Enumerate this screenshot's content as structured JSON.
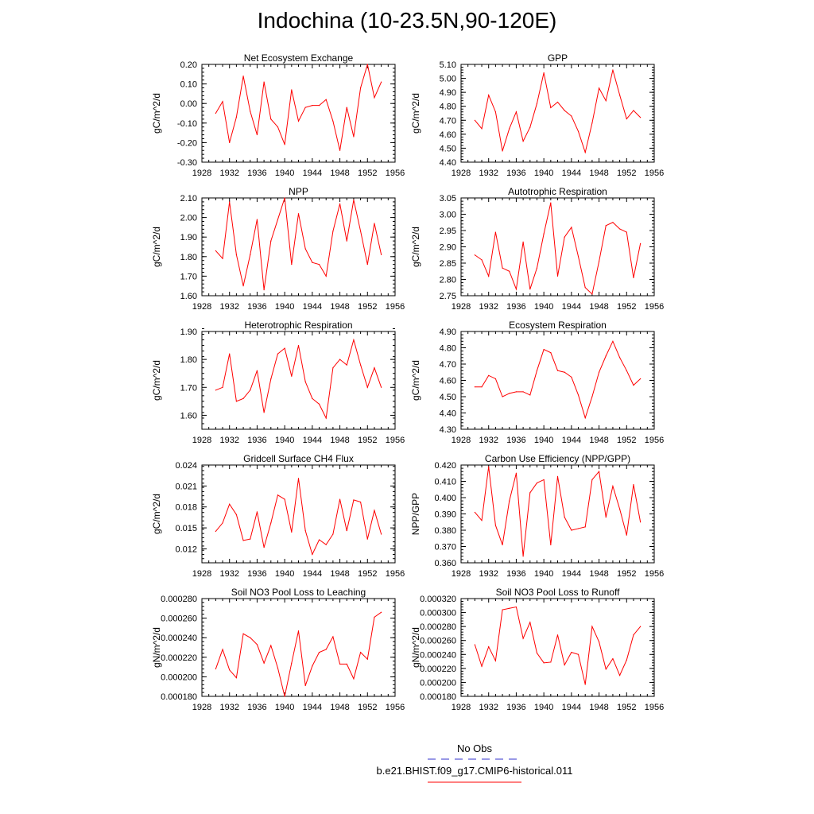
{
  "page": {
    "title": "Indochina (10-23.5N,90-120E)",
    "colors": {
      "series": "#ff0000",
      "obs": "#3333cc",
      "axis": "#000000"
    }
  },
  "legend": {
    "obs_label": "No Obs",
    "model_label": "b.e21.BHIST.f09_g17.CMIP6-historical.011"
  },
  "chart_data": [
    {
      "type": "line",
      "title": "Net Ecosystem Exchange",
      "ylabel": "gC/m^2/d",
      "xlabel": "",
      "xlim": [
        1928,
        1956
      ],
      "xticks": [
        1928,
        1932,
        1936,
        1940,
        1944,
        1948,
        1952,
        1956
      ],
      "ylim": [
        -0.3,
        0.2
      ],
      "yticks": [
        "-0.30",
        "-0.20",
        "-0.10",
        "0.00",
        "0.10",
        "0.20"
      ],
      "ytick_values": [
        -0.3,
        -0.2,
        -0.1,
        0.0,
        0.1,
        0.2
      ],
      "x": [
        1930,
        1931,
        1932,
        1933,
        1934,
        1935,
        1936,
        1937,
        1938,
        1939,
        1940,
        1941,
        1942,
        1943,
        1944,
        1945,
        1946,
        1947,
        1948,
        1949,
        1950,
        1951,
        1952,
        1953,
        1954
      ],
      "series": [
        {
          "values": [
            -0.05,
            0.01,
            -0.2,
            -0.07,
            0.14,
            -0.04,
            -0.16,
            0.11,
            -0.08,
            -0.12,
            -0.21,
            0.07,
            -0.09,
            -0.02,
            -0.01,
            -0.01,
            0.02,
            -0.09,
            -0.24,
            -0.02,
            -0.17,
            0.08,
            0.2,
            0.03,
            0.11
          ]
        }
      ]
    },
    {
      "type": "line",
      "title": "GPP",
      "ylabel": "gC/m^2/d",
      "xlabel": "",
      "xlim": [
        1928,
        1956
      ],
      "xticks": [
        1928,
        1932,
        1936,
        1940,
        1944,
        1948,
        1952,
        1956
      ],
      "ylim": [
        4.4,
        5.1
      ],
      "yticks": [
        "4.40",
        "4.50",
        "4.60",
        "4.70",
        "4.80",
        "4.90",
        "5.00",
        "5.10"
      ],
      "ytick_values": [
        4.4,
        4.5,
        4.6,
        4.7,
        4.8,
        4.9,
        5.0,
        5.1
      ],
      "x": [
        1930,
        1931,
        1932,
        1933,
        1934,
        1935,
        1936,
        1937,
        1938,
        1939,
        1940,
        1941,
        1942,
        1943,
        1944,
        1945,
        1946,
        1947,
        1948,
        1949,
        1950,
        1951,
        1952,
        1953,
        1954
      ],
      "series": [
        {
          "values": [
            4.7,
            4.64,
            4.88,
            4.76,
            4.48,
            4.64,
            4.76,
            4.55,
            4.65,
            4.82,
            5.04,
            4.79,
            4.83,
            4.77,
            4.73,
            4.62,
            4.47,
            4.68,
            4.93,
            4.84,
            5.06,
            4.88,
            4.71,
            4.77,
            4.72
          ]
        }
      ]
    },
    {
      "type": "line",
      "title": "NPP",
      "ylabel": "gC/m^2/d",
      "xlabel": "",
      "xlim": [
        1928,
        1956
      ],
      "xticks": [
        1928,
        1932,
        1936,
        1940,
        1944,
        1948,
        1952,
        1956
      ],
      "ylim": [
        1.6,
        2.1
      ],
      "yticks": [
        "1.60",
        "1.70",
        "1.80",
        "1.90",
        "2.00",
        "2.10"
      ],
      "ytick_values": [
        1.6,
        1.7,
        1.8,
        1.9,
        2.0,
        2.1
      ],
      "x": [
        1930,
        1931,
        1932,
        1933,
        1934,
        1935,
        1936,
        1937,
        1938,
        1939,
        1940,
        1941,
        1942,
        1943,
        1944,
        1945,
        1946,
        1947,
        1948,
        1949,
        1950,
        1951,
        1952,
        1953,
        1954
      ],
      "series": [
        {
          "values": [
            1.83,
            1.79,
            2.08,
            1.81,
            1.65,
            1.81,
            1.99,
            1.63,
            1.88,
            1.99,
            2.1,
            1.76,
            2.02,
            1.84,
            1.77,
            1.76,
            1.7,
            1.93,
            2.07,
            1.88,
            2.09,
            1.93,
            1.76,
            1.97,
            1.81
          ]
        }
      ]
    },
    {
      "type": "line",
      "title": "Autotrophic Respiration",
      "ylabel": "gC/m^2/d",
      "xlabel": "",
      "xlim": [
        1928,
        1956
      ],
      "xticks": [
        1928,
        1932,
        1936,
        1940,
        1944,
        1948,
        1952,
        1956
      ],
      "ylim": [
        2.75,
        3.05
      ],
      "yticks": [
        "2.75",
        "2.80",
        "2.85",
        "2.90",
        "2.95",
        "3.00",
        "3.05"
      ],
      "ytick_values": [
        2.75,
        2.8,
        2.85,
        2.9,
        2.95,
        3.0,
        3.05
      ],
      "x": [
        1930,
        1931,
        1932,
        1933,
        1934,
        1935,
        1936,
        1937,
        1938,
        1939,
        1940,
        1941,
        1942,
        1943,
        1944,
        1945,
        1946,
        1947,
        1948,
        1949,
        1950,
        1951,
        1952,
        1953,
        1954
      ],
      "series": [
        {
          "values": [
            2.875,
            2.86,
            2.81,
            2.945,
            2.835,
            2.825,
            2.77,
            2.915,
            2.77,
            2.835,
            2.94,
            3.035,
            2.81,
            2.93,
            2.96,
            2.87,
            2.775,
            2.755,
            2.855,
            2.965,
            2.975,
            2.955,
            2.945,
            2.805,
            2.91
          ]
        }
      ]
    },
    {
      "type": "line",
      "title": "Heterotrophic Respiration",
      "ylabel": "gC/m^2/d",
      "xlabel": "",
      "xlim": [
        1928,
        1956
      ],
      "xticks": [
        1928,
        1932,
        1936,
        1940,
        1944,
        1948,
        1952,
        1956
      ],
      "ylim": [
        1.55,
        1.9
      ],
      "yticks": [
        "1.60",
        "1.70",
        "1.80",
        "1.90"
      ],
      "ytick_values": [
        1.6,
        1.7,
        1.8,
        1.9
      ],
      "x": [
        1930,
        1931,
        1932,
        1933,
        1934,
        1935,
        1936,
        1937,
        1938,
        1939,
        1940,
        1941,
        1942,
        1943,
        1944,
        1945,
        1946,
        1947,
        1948,
        1949,
        1950,
        1951,
        1952,
        1953,
        1954
      ],
      "series": [
        {
          "values": [
            1.69,
            1.7,
            1.82,
            1.65,
            1.66,
            1.69,
            1.76,
            1.61,
            1.73,
            1.82,
            1.84,
            1.74,
            1.85,
            1.72,
            1.66,
            1.64,
            1.59,
            1.77,
            1.8,
            1.78,
            1.87,
            1.78,
            1.7,
            1.77,
            1.7
          ]
        }
      ]
    },
    {
      "type": "line",
      "title": "Ecosystem Respiration",
      "ylabel": "gC/m^2/d",
      "xlabel": "",
      "xlim": [
        1928,
        1956
      ],
      "xticks": [
        1928,
        1932,
        1936,
        1940,
        1944,
        1948,
        1952,
        1956
      ],
      "ylim": [
        4.3,
        4.9
      ],
      "yticks": [
        "4.30",
        "4.40",
        "4.50",
        "4.60",
        "4.70",
        "4.80",
        "4.90"
      ],
      "ytick_values": [
        4.3,
        4.4,
        4.5,
        4.6,
        4.7,
        4.8,
        4.9
      ],
      "x": [
        1930,
        1931,
        1932,
        1933,
        1934,
        1935,
        1936,
        1937,
        1938,
        1939,
        1940,
        1941,
        1942,
        1943,
        1944,
        1945,
        1946,
        1947,
        1948,
        1949,
        1950,
        1951,
        1952,
        1953,
        1954
      ],
      "series": [
        {
          "values": [
            4.56,
            4.56,
            4.63,
            4.61,
            4.5,
            4.52,
            4.53,
            4.53,
            4.51,
            4.66,
            4.79,
            4.77,
            4.66,
            4.65,
            4.62,
            4.51,
            4.37,
            4.5,
            4.65,
            4.75,
            4.84,
            4.74,
            4.66,
            4.57,
            4.61
          ]
        }
      ]
    },
    {
      "type": "line",
      "title": "Gridcell Surface CH4 Flux",
      "ylabel": "gC/m^2/d",
      "xlabel": "",
      "xlim": [
        1928,
        1956
      ],
      "xticks": [
        1928,
        1932,
        1936,
        1940,
        1944,
        1948,
        1952,
        1956
      ],
      "ylim": [
        0.01,
        0.024
      ],
      "yticks": [
        "0.012",
        "0.015",
        "0.018",
        "0.021",
        "0.024"
      ],
      "ytick_values": [
        0.012,
        0.015,
        0.018,
        0.021,
        0.024
      ],
      "x": [
        1930,
        1931,
        1932,
        1933,
        1934,
        1935,
        1936,
        1937,
        1938,
        1939,
        1940,
        1941,
        1942,
        1943,
        1944,
        1945,
        1946,
        1947,
        1948,
        1949,
        1950,
        1951,
        1952,
        1953,
        1954
      ],
      "series": [
        {
          "values": [
            0.0145,
            0.0157,
            0.0184,
            0.0169,
            0.0132,
            0.0134,
            0.0173,
            0.0122,
            0.0157,
            0.0197,
            0.0191,
            0.0144,
            0.0221,
            0.0146,
            0.0112,
            0.0133,
            0.0126,
            0.0141,
            0.0191,
            0.0146,
            0.019,
            0.0187,
            0.0134,
            0.0175,
            0.0141
          ]
        }
      ]
    },
    {
      "type": "line",
      "title": "Carbon Use Efficiency (NPP/GPP)",
      "ylabel": "NPP/GPP",
      "xlabel": "",
      "xlim": [
        1928,
        1956
      ],
      "xticks": [
        1928,
        1932,
        1936,
        1940,
        1944,
        1948,
        1952,
        1956
      ],
      "ylim": [
        0.36,
        0.42
      ],
      "yticks": [
        "0.360",
        "0.370",
        "0.380",
        "0.390",
        "0.400",
        "0.410",
        "0.420"
      ],
      "ytick_values": [
        0.36,
        0.37,
        0.38,
        0.39,
        0.4,
        0.41,
        0.42
      ],
      "x": [
        1930,
        1931,
        1932,
        1933,
        1934,
        1935,
        1936,
        1937,
        1938,
        1939,
        1940,
        1941,
        1942,
        1943,
        1944,
        1945,
        1946,
        1947,
        1948,
        1949,
        1950,
        1951,
        1952,
        1953,
        1954
      ],
      "series": [
        {
          "values": [
            0.391,
            0.386,
            0.419,
            0.383,
            0.371,
            0.398,
            0.415,
            0.364,
            0.403,
            0.409,
            0.411,
            0.371,
            0.413,
            0.388,
            0.38,
            0.381,
            0.382,
            0.411,
            0.416,
            0.388,
            0.407,
            0.393,
            0.377,
            0.408,
            0.385
          ]
        }
      ]
    },
    {
      "type": "line",
      "title": "Soil NO3 Pool Loss to Leaching",
      "ylabel": "gN/m^2/d",
      "xlabel": "",
      "xlim": [
        1928,
        1956
      ],
      "xticks": [
        1928,
        1932,
        1936,
        1940,
        1944,
        1948,
        1952,
        1956
      ],
      "ylim": [
        0.00018,
        0.00028
      ],
      "yticks": [
        "0.000180",
        "0.000200",
        "0.000220",
        "0.000240",
        "0.000260",
        "0.000280"
      ],
      "ytick_values": [
        0.00018,
        0.0002,
        0.00022,
        0.00024,
        0.00026,
        0.00028
      ],
      "x": [
        1930,
        1931,
        1932,
        1933,
        1934,
        1935,
        1936,
        1937,
        1938,
        1939,
        1940,
        1941,
        1942,
        1943,
        1944,
        1945,
        1946,
        1947,
        1948,
        1949,
        1950,
        1951,
        1952,
        1953,
        1954
      ],
      "series": [
        {
          "values": [
            0.000208,
            0.000228,
            0.000207,
            0.000199,
            0.000244,
            0.00024,
            0.000233,
            0.000214,
            0.000232,
            0.000209,
            0.00018,
            0.000214,
            0.000247,
            0.000191,
            0.000211,
            0.000225,
            0.000228,
            0.000241,
            0.000213,
            0.000213,
            0.000198,
            0.000225,
            0.000218,
            0.000261,
            0.000266
          ]
        }
      ]
    },
    {
      "type": "line",
      "title": "Soil NO3 Pool Loss to Runoff",
      "ylabel": "gN/m^2/d",
      "xlabel": "",
      "xlim": [
        1928,
        1956
      ],
      "xticks": [
        1928,
        1932,
        1936,
        1940,
        1944,
        1948,
        1952,
        1956
      ],
      "ylim": [
        0.00018,
        0.00032
      ],
      "yticks": [
        "0.000180",
        "0.000200",
        "0.000220",
        "0.000240",
        "0.000260",
        "0.000280",
        "0.000300",
        "0.000320"
      ],
      "ytick_values": [
        0.00018,
        0.0002,
        0.00022,
        0.00024,
        0.00026,
        0.00028,
        0.0003,
        0.00032
      ],
      "x": [
        1930,
        1931,
        1932,
        1933,
        1934,
        1935,
        1936,
        1937,
        1938,
        1939,
        1940,
        1941,
        1942,
        1943,
        1944,
        1945,
        1946,
        1947,
        1948,
        1949,
        1950,
        1951,
        1952,
        1953,
        1954
      ],
      "series": [
        {
          "values": [
            0.000254,
            0.000223,
            0.000251,
            0.000231,
            0.000304,
            0.000306,
            0.000308,
            0.000263,
            0.000286,
            0.000242,
            0.000228,
            0.000229,
            0.000268,
            0.000225,
            0.000243,
            0.00024,
            0.000197,
            0.00028,
            0.000258,
            0.000219,
            0.000234,
            0.00021,
            0.000232,
            0.000268,
            0.00028
          ]
        }
      ]
    }
  ]
}
